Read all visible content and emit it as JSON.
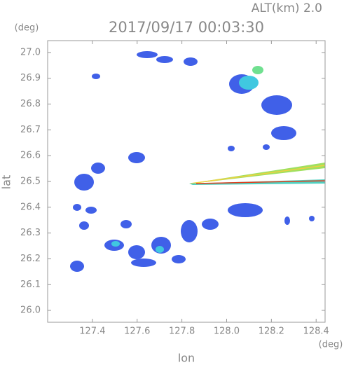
{
  "chart_data": {
    "type": "radar",
    "title": "2017/09/17 00:03:30",
    "subtitle": "ALT(km) 2.0",
    "x_label": "lon",
    "x_unit": "(deg)",
    "y_label": "lat",
    "y_unit": "(deg)",
    "xlim": [
      127.2,
      128.44
    ],
    "ylim": [
      25.954,
      27.046
    ],
    "xticks": [
      127.4,
      127.6,
      127.8,
      {
        "value": 128.0,
        "label": "128.0"
      },
      128.2,
      128.4
    ],
    "yticks": [
      {
        "value": 27.0,
        "label": "27.0"
      },
      26.9,
      26.8,
      26.7,
      26.6,
      26.5,
      26.4,
      26.3,
      26.2,
      26.1,
      {
        "value": 26.0,
        "label": "26.0"
      }
    ]
  }
}
